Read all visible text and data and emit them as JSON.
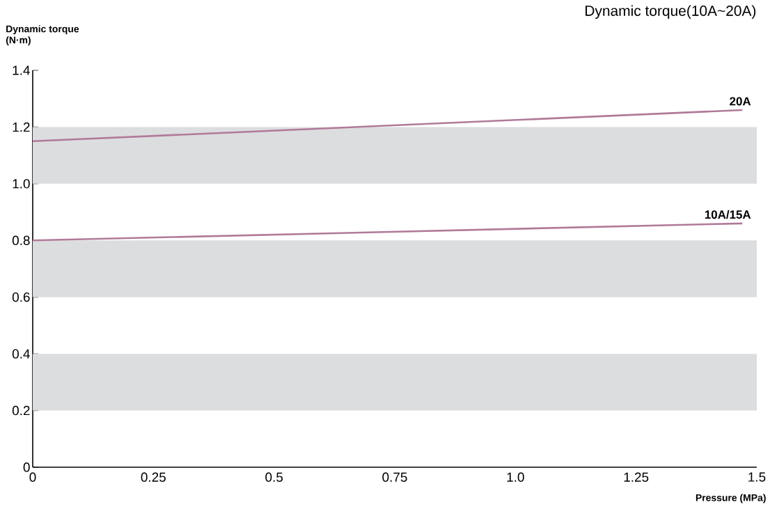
{
  "chart_data": {
    "type": "line",
    "title": "Dynamic torque(10A~20A)",
    "ylabel": "Dynamic torque\n(N·m)",
    "xlabel": "Pressure (MPa)",
    "series": [
      {
        "name": "20A",
        "color": "#b07a98",
        "values": [
          1.15,
          1.26
        ]
      },
      {
        "name": "10A/15A",
        "color": "#b07a98",
        "values": [
          0.8,
          0.86
        ]
      }
    ],
    "x": [
      0,
      1.47
    ],
    "xlim": [
      0,
      1.5
    ],
    "ylim": [
      0,
      1.4
    ],
    "xticks": [
      0,
      0.25,
      0.5,
      0.75,
      {
        "value": 1,
        "label": "1.0"
      },
      1.25,
      1.5
    ],
    "yticks": [
      0,
      0.2,
      0.4,
      0.6,
      0.8,
      {
        "value": 1,
        "label": "1.0"
      },
      1.2,
      1.4
    ],
    "bands": [
      {
        "axis": "y",
        "from": 0.2,
        "to": 0.4,
        "color": "#dcdddf"
      },
      {
        "axis": "y",
        "from": 0.6,
        "to": 0.8,
        "color": "#dcdddf"
      },
      {
        "axis": "y",
        "from": 1.0,
        "to": 1.2,
        "color": "#dcdddf"
      }
    ],
    "grid": false,
    "legend": false,
    "marker": "none",
    "line_style": "solid"
  }
}
